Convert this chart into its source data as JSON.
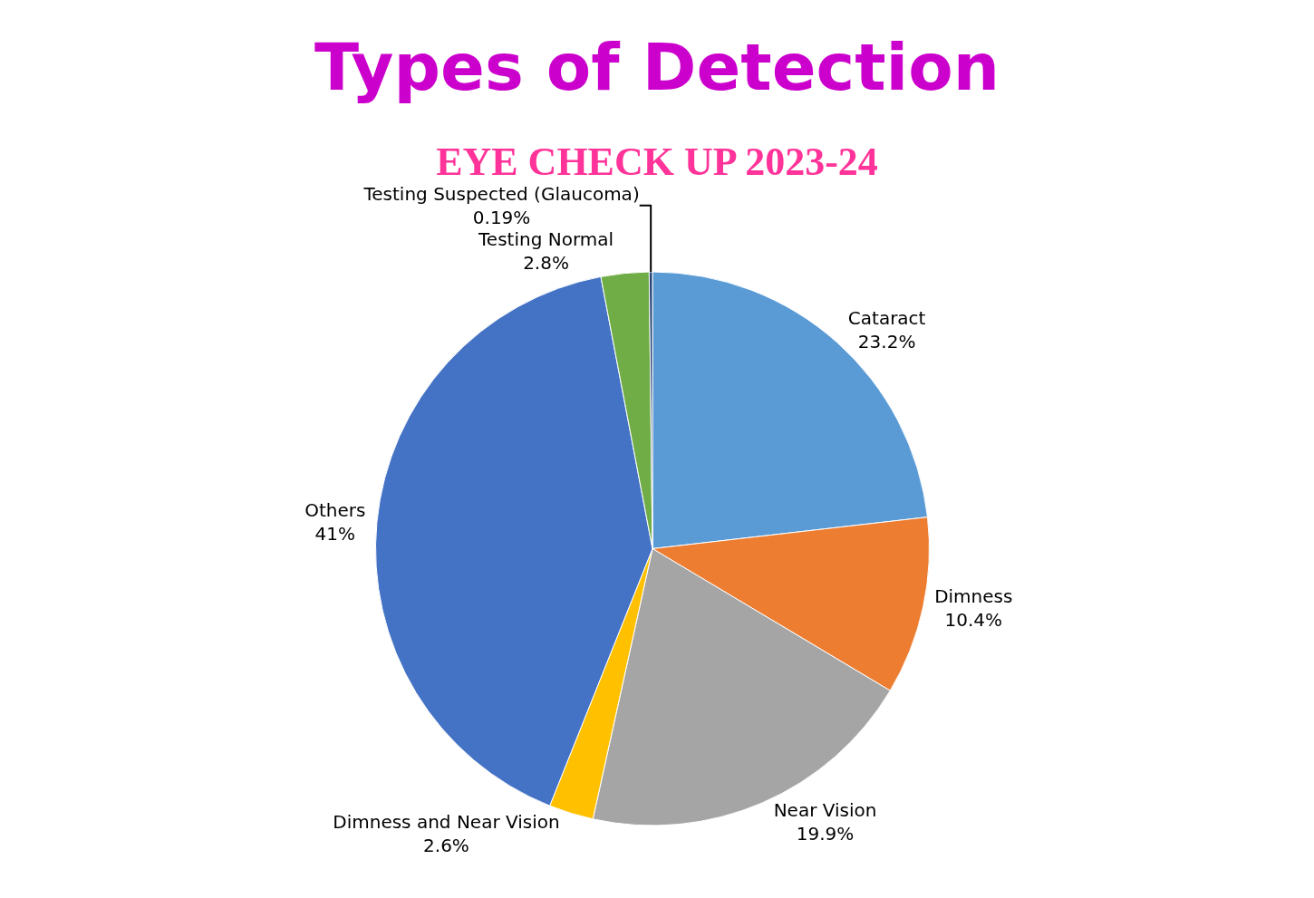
{
  "chart_data": {
    "type": "pie",
    "title": "Types of Detection",
    "subtitle": "EYE CHECK UP 2023-24",
    "categories": [
      "Cataract",
      "Dimness",
      "Near Vision",
      "Dimness and Near Vision",
      "Others",
      "Testing Normal",
      "Testing Suspected (Glaucoma)"
    ],
    "values": [
      23.2,
      10.4,
      19.9,
      2.6,
      41,
      2.8,
      0.19
    ],
    "value_labels": [
      "23.2%",
      "10.4%",
      "19.9%",
      "2.6%",
      "41%",
      "2.8%",
      "0.19%"
    ],
    "colors": [
      "#5b9bd5",
      "#ed7d31",
      "#a5a5a5",
      "#ffc000",
      "#4472c4",
      "#70ad47",
      "#264478"
    ],
    "legend": false
  }
}
